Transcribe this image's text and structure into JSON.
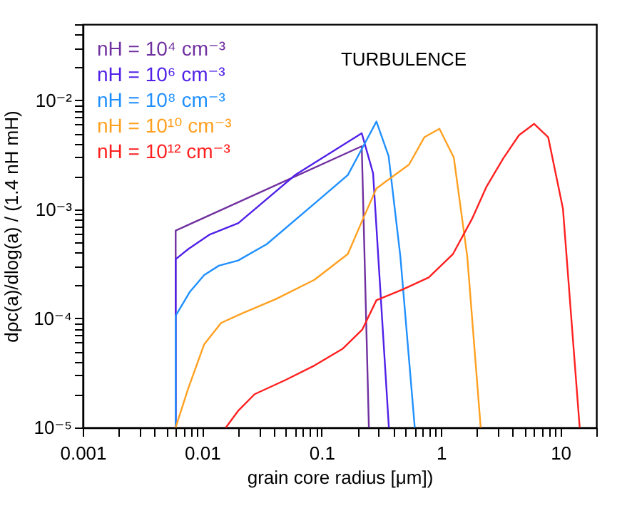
{
  "chart_data": {
    "type": "line",
    "xlabel": "grain core radius [μm])",
    "ylabel": "dρc(a)/dlog(a) / (1.4 nH mH)",
    "annotations": [
      "TURBULENCE"
    ],
    "log": "xy",
    "grid": false,
    "legend": "top left",
    "marker": "none",
    "line_style": "solid",
    "xlim": [
      0.001,
      20
    ],
    "ylim": [
      1e-05,
      0.05
    ],
    "xticks": [
      0.001,
      {
        "value": 0.002,
        "label": null
      },
      {
        "value": 0.003,
        "label": null
      },
      {
        "value": 0.004,
        "label": null
      },
      {
        "value": 0.005,
        "label": null
      },
      {
        "value": 0.006,
        "label": null
      },
      {
        "value": 0.007,
        "label": null
      },
      {
        "value": 0.008,
        "label": null
      },
      {
        "value": 0.009,
        "label": null
      },
      0.01,
      {
        "value": 0.02,
        "label": null
      },
      {
        "value": 0.03,
        "label": null
      },
      {
        "value": 0.04,
        "label": null
      },
      {
        "value": 0.05,
        "label": null
      },
      {
        "value": 0.06,
        "label": null
      },
      {
        "value": 0.07,
        "label": null
      },
      {
        "value": 0.08,
        "label": null
      },
      {
        "value": 0.09,
        "label": null
      },
      0.1,
      {
        "value": 0.2,
        "label": null
      },
      {
        "value": 0.3,
        "label": null
      },
      {
        "value": 0.4,
        "label": null
      },
      {
        "value": 0.5,
        "label": null
      },
      {
        "value": 0.6,
        "label": null
      },
      {
        "value": 0.7,
        "label": null
      },
      {
        "value": 0.8,
        "label": null
      },
      {
        "value": 0.9,
        "label": null
      },
      1,
      {
        "value": 2,
        "label": null
      },
      {
        "value": 3,
        "label": null
      },
      {
        "value": 4,
        "label": null
      },
      {
        "value": 5,
        "label": null
      },
      {
        "value": 6,
        "label": null
      },
      {
        "value": 7,
        "label": null
      },
      {
        "value": 8,
        "label": null
      },
      {
        "value": 9,
        "label": null
      },
      10,
      {
        "value": 20,
        "label": null
      }
    ],
    "yticks": [
      {
        "value": 1e-05,
        "label": "10⁻⁵"
      },
      {
        "value": 2e-05,
        "label": null
      },
      {
        "value": 3e-05,
        "label": null
      },
      {
        "value": 4e-05,
        "label": null
      },
      {
        "value": 5e-05,
        "label": null
      },
      {
        "value": 6e-05,
        "label": null
      },
      {
        "value": 7e-05,
        "label": null
      },
      {
        "value": 8e-05,
        "label": null
      },
      {
        "value": 9e-05,
        "label": null
      },
      {
        "value": 0.0001,
        "label": "10⁻⁴"
      },
      {
        "value": 0.0002,
        "label": null
      },
      {
        "value": 0.0003,
        "label": null
      },
      {
        "value": 0.0004,
        "label": null
      },
      {
        "value": 0.0005,
        "label": null
      },
      {
        "value": 0.0006,
        "label": null
      },
      {
        "value": 0.0007,
        "label": null
      },
      {
        "value": 0.0008,
        "label": null
      },
      {
        "value": 0.0009,
        "label": null
      },
      {
        "value": 0.001,
        "label": "10⁻³"
      },
      {
        "value": 0.002,
        "label": null
      },
      {
        "value": 0.003,
        "label": null
      },
      {
        "value": 0.004,
        "label": null
      },
      {
        "value": 0.005,
        "label": null
      },
      {
        "value": 0.006,
        "label": null
      },
      {
        "value": 0.007,
        "label": null
      },
      {
        "value": 0.008,
        "label": null
      },
      {
        "value": 0.009,
        "label": null
      },
      {
        "value": 0.01,
        "label": "10⁻²"
      },
      {
        "value": 0.02,
        "label": null
      },
      {
        "value": 0.03,
        "label": null
      },
      {
        "value": 0.04,
        "label": null
      },
      {
        "value": 0.05,
        "label": null
      }
    ],
    "series": [
      {
        "name": "nH = 10⁴ cm⁻³",
        "color": "#7030a0",
        "x": [
          0.006,
          0.006,
          0.217,
          0.249
        ],
        "values": [
          1e-05,
          0.00064,
          0.0038,
          1e-05
        ]
      },
      {
        "name": "nH = 10⁶ cm⁻³",
        "color": "#5020e8",
        "x": [
          0.006,
          0.006,
          0.0077,
          0.0116,
          0.0201,
          0.0608,
          0.217,
          0.27,
          0.366
        ],
        "values": [
          1e-05,
          0.00035,
          0.000435,
          0.00059,
          0.00075,
          0.00209,
          0.005,
          0.00215,
          1e-05
        ]
      },
      {
        "name": "nH = 10⁸ cm⁻³",
        "color": "#2090ff",
        "x": [
          0.006,
          0.006,
          0.0079,
          0.0104,
          0.0138,
          0.02,
          0.0347,
          0.087,
          0.166,
          0.288,
          0.364,
          0.457,
          0.603
        ],
        "values": [
          1e-05,
          0.000106,
          0.000176,
          0.00025,
          0.000305,
          0.00034,
          0.00048,
          0.00113,
          0.00207,
          0.0064,
          0.0031,
          0.00037,
          1e-05
        ]
      },
      {
        "name": "nH = 10¹⁰ cm⁻³",
        "color": "#ffa020",
        "x": [
          0.006,
          0.0076,
          0.0104,
          0.0144,
          0.0219,
          0.0416,
          0.087,
          0.166,
          0.219,
          0.288,
          0.54,
          0.726,
          0.97,
          1.28,
          1.66,
          2.15
        ],
        "values": [
          1e-05,
          2.24e-05,
          5.8e-05,
          9.1e-05,
          0.000112,
          0.000151,
          0.000226,
          0.00039,
          0.00079,
          0.00156,
          0.00258,
          0.0046,
          0.0055,
          0.003,
          0.00037,
          1e-05
        ]
      },
      {
        "name": "nH = 10¹² cm⁻³",
        "color": "#ff2020",
        "x": [
          0.0158,
          0.02,
          0.0275,
          0.05,
          0.087,
          0.151,
          0.219,
          0.288,
          0.48,
          0.79,
          1.26,
          1.82,
          2.4,
          3.32,
          4.5,
          6.03,
          7.9,
          10.5,
          14.5
        ],
        "values": [
          1e-05,
          1.42e-05,
          2.02e-05,
          2.73e-05,
          3.7e-05,
          5.3e-05,
          7.9e-05,
          0.000147,
          0.000185,
          0.000238,
          0.00039,
          0.00082,
          0.00161,
          0.00294,
          0.0048,
          0.0061,
          0.0046,
          0.00102,
          1e-05
        ]
      }
    ]
  }
}
